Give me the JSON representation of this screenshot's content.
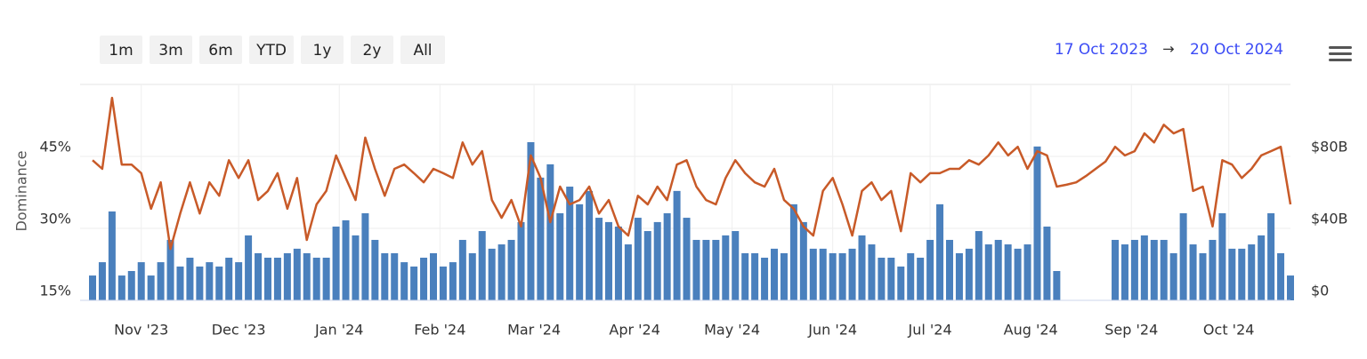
{
  "toolbar": {
    "range_buttons": [
      "1m",
      "3m",
      "6m",
      "YTD",
      "1y",
      "2y",
      "All"
    ],
    "range_from": "17 Oct 2023",
    "range_separator": "→",
    "range_to": "20 Oct 2024"
  },
  "chart_data": {
    "type": "combo",
    "y_label": "Dominance",
    "grid": true,
    "x": [
      "2023-10-17",
      "2023-10-20",
      "2023-10-23",
      "2023-10-26",
      "2023-10-29",
      "2023-11-01",
      "2023-11-04",
      "2023-11-07",
      "2023-11-10",
      "2023-11-13",
      "2023-11-16",
      "2023-11-19",
      "2023-11-22",
      "2023-11-25",
      "2023-11-28",
      "2023-12-01",
      "2023-12-04",
      "2023-12-07",
      "2023-12-10",
      "2023-12-13",
      "2023-12-16",
      "2023-12-19",
      "2023-12-22",
      "2023-12-25",
      "2023-12-28",
      "2023-12-31",
      "2024-01-03",
      "2024-01-06",
      "2024-01-09",
      "2024-01-12",
      "2024-01-15",
      "2024-01-18",
      "2024-01-21",
      "2024-01-24",
      "2024-01-27",
      "2024-01-30",
      "2024-02-02",
      "2024-02-05",
      "2024-02-08",
      "2024-02-11",
      "2024-02-14",
      "2024-02-17",
      "2024-02-20",
      "2024-02-23",
      "2024-02-26",
      "2024-02-29",
      "2024-03-03",
      "2024-03-06",
      "2024-03-09",
      "2024-03-12",
      "2024-03-15",
      "2024-03-18",
      "2024-03-21",
      "2024-03-24",
      "2024-03-27",
      "2024-03-30",
      "2024-04-02",
      "2024-04-05",
      "2024-04-08",
      "2024-04-11",
      "2024-04-14",
      "2024-04-17",
      "2024-04-20",
      "2024-04-23",
      "2024-04-26",
      "2024-04-29",
      "2024-05-02",
      "2024-05-05",
      "2024-05-08",
      "2024-05-11",
      "2024-05-14",
      "2024-05-17",
      "2024-05-20",
      "2024-05-23",
      "2024-05-26",
      "2024-05-29",
      "2024-06-01",
      "2024-06-04",
      "2024-06-07",
      "2024-06-10",
      "2024-06-13",
      "2024-06-16",
      "2024-06-19",
      "2024-06-22",
      "2024-06-25",
      "2024-06-28",
      "2024-07-01",
      "2024-07-04",
      "2024-07-07",
      "2024-07-10",
      "2024-07-13",
      "2024-07-16",
      "2024-07-19",
      "2024-07-22",
      "2024-07-25",
      "2024-07-28",
      "2024-07-31",
      "2024-08-03",
      "2024-08-06",
      "2024-08-09",
      "2024-08-12",
      "2024-08-15",
      "2024-08-18",
      "2024-08-21",
      "2024-08-24",
      "2024-08-27",
      "2024-08-30",
      "2024-09-02",
      "2024-09-05",
      "2024-09-08",
      "2024-09-11",
      "2024-09-14",
      "2024-09-17",
      "2024-09-20",
      "2024-09-23",
      "2024-09-26",
      "2024-09-29",
      "2024-10-02",
      "2024-10-05",
      "2024-10-08",
      "2024-10-11",
      "2024-10-14",
      "2024-10-17",
      "2024-10-20"
    ],
    "series": [
      {
        "type": "bar",
        "axis": "y2",
        "color": "#4a80bd",
        "values": [
          13800000000.0,
          21200000000.0,
          49400000000.0,
          13800000000.0,
          16300000000.0,
          21200000000.0,
          13800000000.0,
          21200000000.0,
          33600000000.0,
          18800000000.0,
          23700000000.0,
          18800000000.0,
          21200000000.0,
          18800000000.0,
          23700000000.0,
          21200000000.0,
          36100000000.0,
          26200000000.0,
          23700000000.0,
          23700000000.0,
          26200000000.0,
          28700000000.0,
          26200000000.0,
          23700000000.0,
          23700000000.0,
          41000000000.0,
          44500000000.0,
          36100000000.0,
          48400000000.0,
          33600000000.0,
          26200000000.0,
          26200000000.0,
          21200000000.0,
          18800000000.0,
          23700000000.0,
          26200000000.0,
          18800000000.0,
          21200000000.0,
          33600000000.0,
          26200000000.0,
          38500000000.0,
          28700000000.0,
          31100000000.0,
          33600000000.0,
          43500000000.0,
          87900000000.0,
          68200000000.0,
          75600000000.0,
          48400000000.0,
          63200000000.0,
          53400000000.0,
          60800000000.0,
          45900000000.0,
          43500000000.0,
          41000000000.0,
          31100000000.0,
          45900000000.0,
          38500000000.0,
          43500000000.0,
          48400000000.0,
          60800000000.0,
          45900000000.0,
          33600000000.0,
          33600000000.0,
          33600000000.0,
          36100000000.0,
          38500000000.0,
          26200000000.0,
          26200000000.0,
          23700000000.0,
          28700000000.0,
          26200000000.0,
          53400000000.0,
          43500000000.0,
          28700000000.0,
          28700000000.0,
          26200000000.0,
          26200000000.0,
          28700000000.0,
          36100000000.0,
          31100000000.0,
          23700000000.0,
          23700000000.0,
          18800000000.0,
          26200000000.0,
          23700000000.0,
          33600000000.0,
          53400000000.0,
          33600000000.0,
          26200000000.0,
          28700000000.0,
          38500000000.0,
          31100000000.0,
          33600000000.0,
          31100000000.0,
          28700000000.0,
          31100000000.0,
          85500000000.0,
          41000000000.0,
          16300000000.0,
          null,
          null,
          null,
          null,
          null,
          33600000000.0,
          31100000000.0,
          33600000000.0,
          36100000000.0,
          33600000000.0,
          33600000000.0,
          26200000000.0,
          48400000000.0,
          31100000000.0,
          26200000000.0,
          33600000000.0,
          48400000000.0,
          28700000000.0,
          28700000000.0,
          31100000000.0,
          36100000000.0,
          48400000000.0,
          26200000000.0,
          13800000000.0
        ]
      },
      {
        "type": "line",
        "color": "#c85a28",
        "values": [
          44.2,
          42.4,
          57.2,
          43.3,
          43.3,
          41.5,
          34.1,
          39.6,
          25.7,
          33.1,
          39.6,
          33.1,
          39.6,
          36.8,
          44.2,
          40.5,
          44.2,
          35.9,
          37.8,
          41.5,
          34.1,
          40.5,
          27.6,
          35.0,
          37.8,
          45.2,
          40.5,
          35.9,
          48.9,
          42.4,
          36.8,
          42.4,
          43.3,
          41.5,
          39.6,
          42.4,
          41.5,
          40.5,
          47.9,
          43.3,
          46.1,
          35.9,
          32.2,
          35.9,
          30.4,
          45.2,
          40.5,
          31.3,
          38.7,
          35.0,
          35.9,
          38.7,
          33.1,
          35.9,
          30.4,
          28.5,
          36.8,
          35.0,
          38.7,
          35.9,
          43.3,
          44.2,
          38.7,
          35.9,
          35.0,
          40.5,
          44.2,
          41.5,
          39.6,
          38.7,
          42.4,
          35.9,
          34.1,
          30.4,
          28.5,
          37.8,
          40.5,
          35.0,
          28.5,
          37.8,
          39.6,
          35.9,
          37.8,
          29.4,
          41.5,
          39.6,
          41.5,
          41.5,
          42.4,
          42.4,
          44.2,
          43.3,
          45.2,
          47.9,
          45.2,
          47.0,
          42.4,
          46.1,
          45.2,
          38.7,
          39.1,
          39.6,
          40.9,
          42.4,
          43.9,
          47.0,
          45.2,
          46.1,
          49.8,
          47.9,
          51.6,
          49.8,
          50.7,
          37.8,
          38.7,
          30.4,
          44.2,
          43.3,
          40.5,
          42.4,
          45.2,
          46.1,
          47.0,
          35.0
        ]
      }
    ],
    "xlim": [
      "2023-10-17",
      "2024-10-20"
    ],
    "xticks": [
      {
        "value": "2023-11-01",
        "label": "Nov '23"
      },
      {
        "value": "2023-12-01",
        "label": "Dec '23"
      },
      {
        "value": "2024-01-01",
        "label": "Jan '24"
      },
      {
        "value": "2024-02-01",
        "label": "Feb '24"
      },
      {
        "value": "2024-03-01",
        "label": "Mar '24"
      },
      {
        "value": "2024-04-01",
        "label": "Apr '24"
      },
      {
        "value": "2024-05-01",
        "label": "May '24"
      },
      {
        "value": "2024-06-01",
        "label": "Jun '24"
      },
      {
        "value": "2024-07-01",
        "label": "Jul '24"
      },
      {
        "value": "2024-08-01",
        "label": "Aug '24"
      },
      {
        "value": "2024-09-01",
        "label": "Sep '24"
      },
      {
        "value": "2024-10-01",
        "label": "Oct '24"
      }
    ],
    "ylim": [
      15,
      60
    ],
    "yticks": [
      {
        "value": 15,
        "label": "15%"
      },
      {
        "value": 30,
        "label": "30%"
      },
      {
        "value": 45,
        "label": "45%"
      }
    ],
    "y2lim": [
      0,
      120000000000.0
    ],
    "y2ticks": [
      {
        "value": 0,
        "label": "$0"
      },
      {
        "value": 40000000000.0,
        "label": "$40B"
      },
      {
        "value": 80000000000.0,
        "label": "$80B"
      }
    ]
  }
}
